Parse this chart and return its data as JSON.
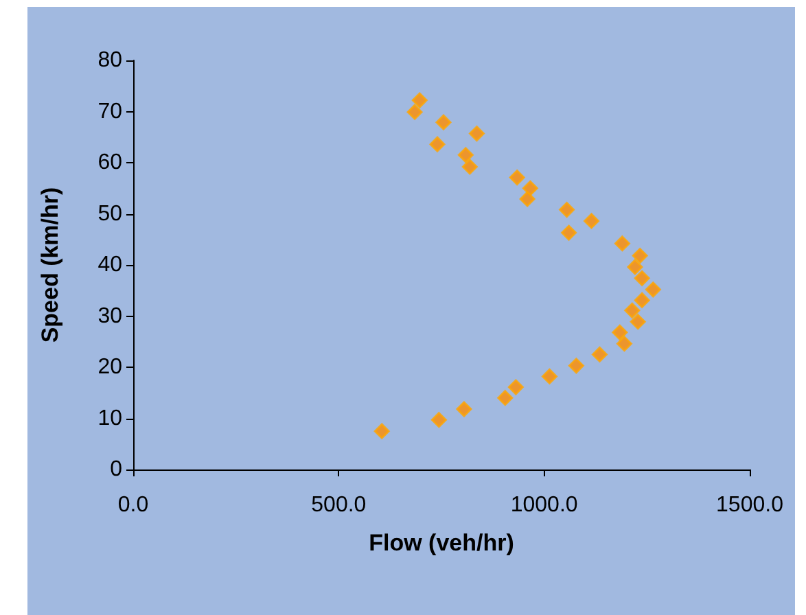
{
  "chart_data": {
    "type": "scatter",
    "xlabel": "Flow (veh/hr)",
    "ylabel": "Speed (km/hr)",
    "x": [
      697,
      685,
      755,
      836,
      740,
      809,
      819,
      934,
      966,
      959,
      1055,
      1115,
      1060,
      1190,
      1233,
      1221,
      1238,
      1265,
      1238,
      1214,
      1228,
      1184,
      1195,
      1135,
      1078,
      1013,
      931,
      905,
      805,
      744,
      605
    ],
    "series": [
      {
        "color": "#ff8c00",
        "values": [
          72.2,
          69.9,
          67.9,
          65.7,
          63.6,
          61.5,
          59.2,
          57.1,
          55.0,
          52.9,
          50.8,
          48.6,
          46.3,
          44.2,
          41.8,
          39.6,
          37.4,
          35.2,
          33.1,
          31.1,
          28.9,
          26.8,
          24.6,
          22.5,
          20.3,
          18.2,
          16.1,
          14.0,
          11.8,
          9.7,
          7.5
        ]
      }
    ],
    "xlim": [
      0,
      1500
    ],
    "xticks": [
      {
        "value": 0,
        "label": "0.0"
      },
      {
        "value": 500,
        "label": "500.0"
      },
      {
        "value": 1000,
        "label": "1000.0"
      },
      {
        "value": 1500,
        "label": "1500.0"
      }
    ],
    "ylim": [
      0,
      80
    ],
    "yticks": [
      0,
      10,
      20,
      30,
      40,
      50,
      60,
      70,
      80
    ],
    "grid": false,
    "marker": "diamond"
  }
}
